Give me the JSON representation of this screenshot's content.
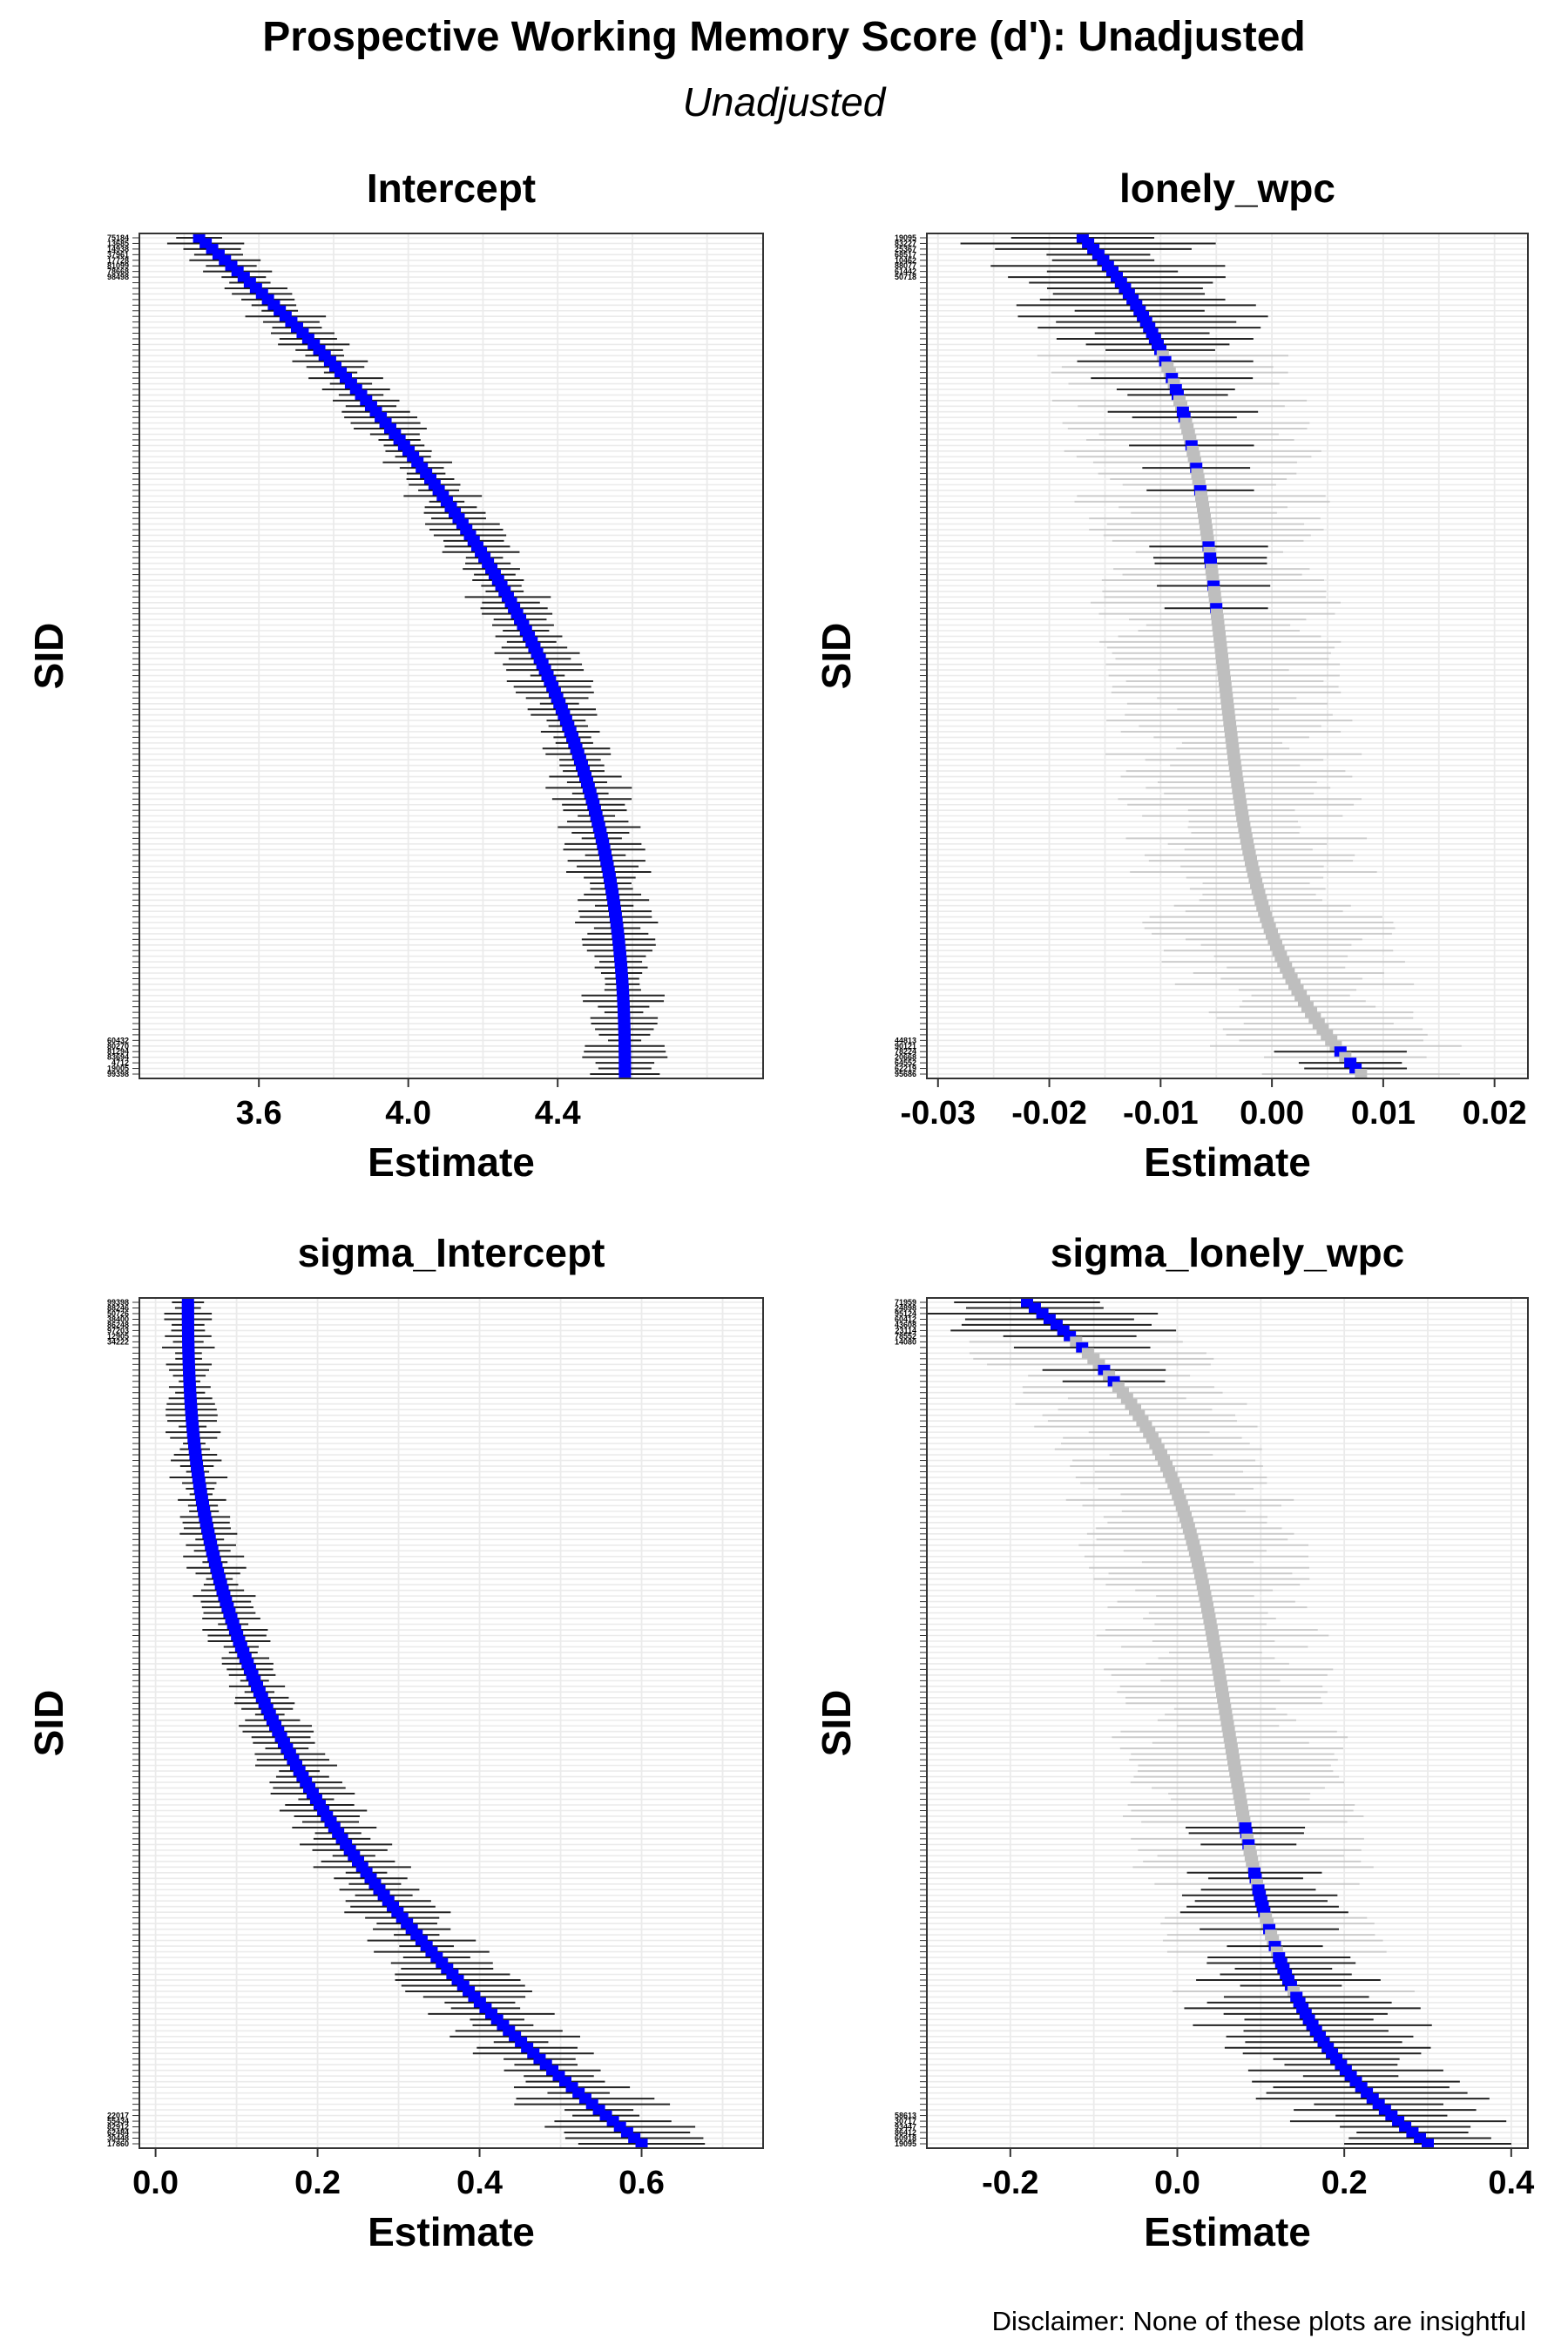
{
  "figure": {
    "title": "Prospective Working Memory Score (d'): Unadjusted",
    "subtitle": "Unadjusted",
    "disclaimer": "Disclaimer: None of these plots are insightful"
  },
  "colors": {
    "highlight": "#0000ff",
    "nonsignificant": "#bebebe",
    "errorbar": "#000000",
    "grid": "#ebebeb",
    "panel_background": "#ffffff"
  },
  "chart_data": [
    {
      "type": "scatter",
      "title": "Intercept",
      "xlabel": "Estimate",
      "ylabel": "SID",
      "xlim": [
        3.28,
        4.95
      ],
      "xticks": [
        3.6,
        4.0,
        4.4
      ],
      "xtick_labels": [
        "3.6",
        "4.0",
        "4.4"
      ],
      "n_subjects": 150,
      "estimate_range": [
        3.44,
        4.58
      ],
      "ci_halfwidth_approx": 0.08,
      "highlight_rule": "all",
      "sid_labels_top": [
        "75184",
        "13685",
        "14938",
        "37961",
        "17728",
        "81099",
        "78668",
        "98498"
      ],
      "sid_labels_bottom": [
        "60432",
        "80270",
        "81294",
        "83694",
        "4712",
        "19005",
        "99398"
      ]
    },
    {
      "type": "scatter",
      "title": "lonely_wpc",
      "xlabel": "Estimate",
      "ylabel": "SID",
      "xlim": [
        -0.031,
        0.023
      ],
      "xticks": [
        -0.03,
        -0.02,
        -0.01,
        0.0,
        0.01,
        0.02
      ],
      "xtick_labels": [
        "-0.03",
        "-0.02",
        "-0.01",
        "0.00",
        "0.01",
        "0.02"
      ],
      "n_subjects": 150,
      "estimate_range": [
        -0.017,
        0.008
      ],
      "ci_halfwidth_approx": 0.008,
      "highlight_rule": "interval excludes zero",
      "sid_labels_top": [
        "19095",
        "83227",
        "25367",
        "68517",
        "10462",
        "88077",
        "61442",
        "50718"
      ],
      "sid_labels_bottom": [
        "44813",
        "90121",
        "78224",
        "20668",
        "64552",
        "62219",
        "95686"
      ]
    },
    {
      "type": "scatter",
      "title": "sigma_Intercept",
      "xlabel": "Estimate",
      "ylabel": "SID",
      "xlim": [
        -0.02,
        0.75
      ],
      "xticks": [
        0.0,
        0.2,
        0.4,
        0.6
      ],
      "xtick_labels": [
        "0.0",
        "0.2",
        "0.4",
        "0.6"
      ],
      "n_subjects": 150,
      "estimate_range": [
        0.04,
        0.6
      ],
      "ci_halfwidth_approx": 0.05,
      "highlight_rule": "all",
      "sid_labels_top": [
        "99398",
        "88246",
        "50726",
        "38400",
        "86248",
        "97203",
        "12905",
        "34222"
      ],
      "sid_labels_bottom": [
        "22017",
        "55434",
        "82912",
        "62484",
        "30448",
        "17860"
      ]
    },
    {
      "type": "scatter",
      "title": "sigma_lonely_wpc",
      "xlabel": "Estimate",
      "ylabel": "SID",
      "xlim": [
        -0.3,
        0.42
      ],
      "xticks": [
        -0.2,
        0.0,
        0.2,
        0.4
      ],
      "xtick_labels": [
        "-0.2",
        "0.0",
        "0.2",
        "0.4"
      ],
      "n_subjects": 150,
      "estimate_range": [
        -0.18,
        0.3
      ],
      "ci_halfwidth_approx": 0.1,
      "highlight_rule": "interval excludes zero",
      "sid_labels_top": [
        "71959",
        "24898",
        "95124",
        "60412",
        "43608",
        "23114",
        "78552",
        "14080"
      ],
      "sid_labels_bottom": [
        "58613",
        "30717",
        "93447",
        "86412",
        "60918",
        "19095"
      ]
    }
  ]
}
